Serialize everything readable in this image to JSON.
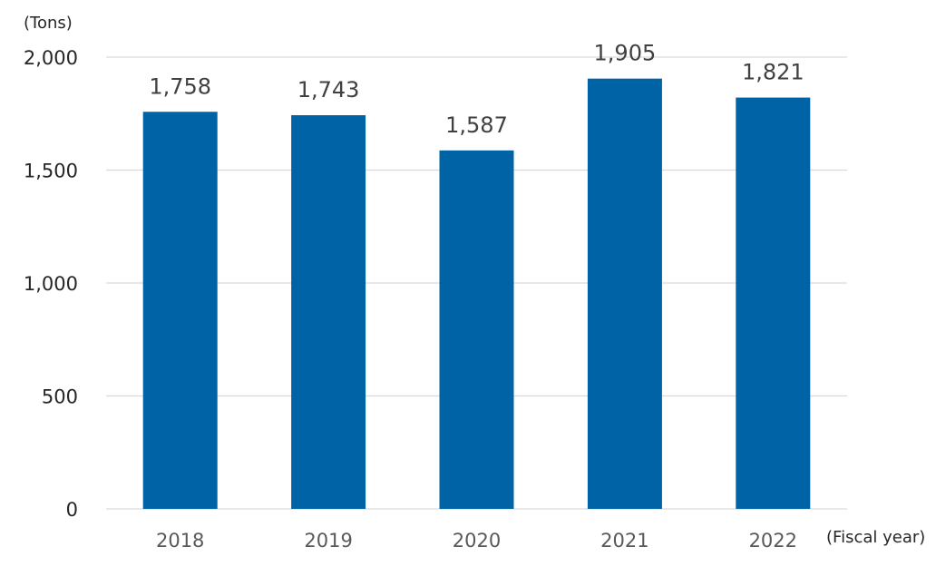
{
  "chart_data": {
    "type": "bar",
    "categories": [
      "2018",
      "2019",
      "2020",
      "2021",
      "2022"
    ],
    "values": [
      1758,
      1743,
      1587,
      1905,
      1821
    ],
    "data_labels": [
      "1,758",
      "1,743",
      "1,587",
      "1,905",
      "1,821"
    ],
    "ylabel": "(Tons)",
    "xlabel": "(Fiscal year)",
    "ylim": [
      0,
      2000
    ],
    "yticks": [
      0,
      500,
      1000,
      1500,
      2000
    ],
    "ytick_labels": [
      "0",
      "500",
      "1,000",
      "1,500",
      "2,000"
    ],
    "grid": true,
    "legend": "none",
    "bar_color": "#0063A6"
  }
}
